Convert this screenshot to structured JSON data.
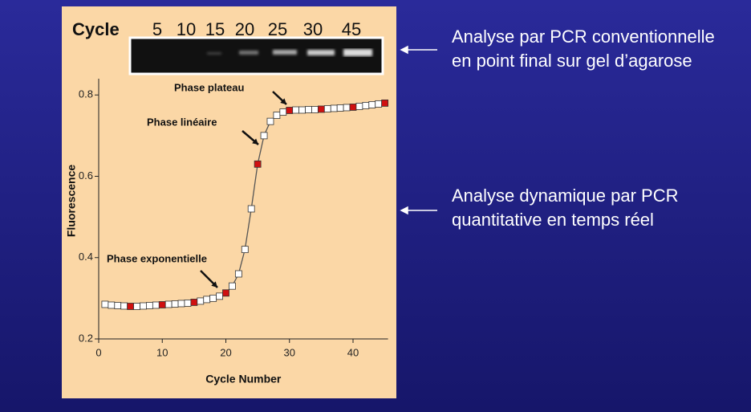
{
  "slide": {
    "notes": [
      {
        "lines": [
          "Analyse par PCR conventionnelle",
          "en point final sur gel d’agarose"
        ]
      },
      {
        "lines": [
          "Analyse dynamique par PCR",
          "quantitative en temps réel"
        ]
      }
    ]
  },
  "gel": {
    "label": "Cycle",
    "lanes": [
      5,
      10,
      15,
      20,
      25,
      30,
      45
    ]
  },
  "chart_data": {
    "type": "line",
    "xlabel": "Cycle Number",
    "ylabel": "Fluorescence",
    "x": [
      1,
      2,
      3,
      4,
      5,
      6,
      7,
      8,
      9,
      10,
      11,
      12,
      13,
      14,
      15,
      16,
      17,
      18,
      19,
      20,
      21,
      22,
      23,
      24,
      25,
      26,
      27,
      28,
      29,
      30,
      31,
      32,
      33,
      34,
      35,
      36,
      37,
      38,
      39,
      40,
      41,
      42,
      43,
      44,
      45
    ],
    "values": [
      0.285,
      0.283,
      0.282,
      0.281,
      0.28,
      0.28,
      0.281,
      0.282,
      0.283,
      0.284,
      0.285,
      0.286,
      0.287,
      0.288,
      0.29,
      0.293,
      0.297,
      0.3,
      0.305,
      0.313,
      0.33,
      0.36,
      0.42,
      0.52,
      0.63,
      0.7,
      0.735,
      0.75,
      0.758,
      0.762,
      0.763,
      0.763,
      0.764,
      0.764,
      0.765,
      0.766,
      0.767,
      0.768,
      0.769,
      0.77,
      0.772,
      0.774,
      0.776,
      0.778,
      0.78
    ],
    "color": "#555555",
    "marker_color": "#ffffff",
    "highlight_color": "#d01010",
    "highlight_every": 5,
    "xlim": [
      0,
      45.5
    ],
    "ylim": [
      0.2,
      0.84
    ],
    "xticks": [
      0,
      10,
      20,
      30,
      40
    ],
    "yticks": [
      0.2,
      0.4,
      0.6,
      0.8
    ],
    "annotations": [
      {
        "text": "Phase plateau"
      },
      {
        "text": "Phase linéaire"
      },
      {
        "text": "Phase exponentielle"
      }
    ]
  }
}
